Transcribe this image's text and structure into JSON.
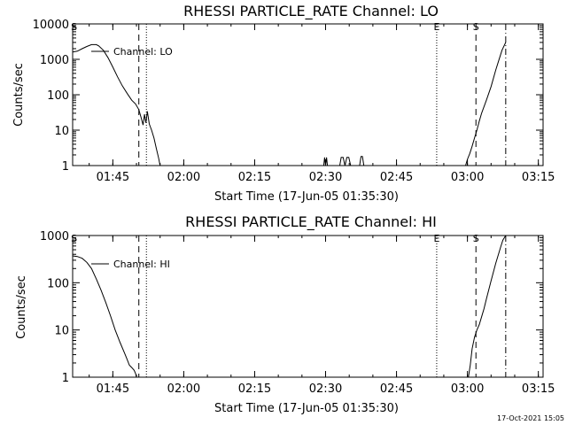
{
  "chart_data": [
    {
      "type": "line",
      "title": "RHESSI PARTICLE_RATE Channel: LO",
      "xlabel": "Start Time (17-Jun-05 01:35:30)",
      "ylabel": "Counts/sec",
      "yscale": "log",
      "xlim_minutes": [
        1.5,
        101.0
      ],
      "ylim": [
        1,
        10000
      ],
      "x_ticks": [
        {
          "minute": 10.0,
          "label": "01:45"
        },
        {
          "minute": 25.0,
          "label": "02:00"
        },
        {
          "minute": 40.0,
          "label": "02:15"
        },
        {
          "minute": 55.0,
          "label": "02:30"
        },
        {
          "minute": 70.0,
          "label": "02:45"
        },
        {
          "minute": 85.0,
          "label": "03:00"
        },
        {
          "minute": 100.0,
          "label": "03:15"
        }
      ],
      "y_ticks": [
        {
          "value": 1,
          "label": "1"
        },
        {
          "value": 10,
          "label": "10"
        },
        {
          "value": 100,
          "label": "100"
        },
        {
          "value": 1000,
          "label": "1000"
        },
        {
          "value": 10000,
          "label": "10000"
        }
      ],
      "legend": "Channel: LO",
      "markers": [
        {
          "minute": 1.8,
          "label": "S",
          "style": "none"
        },
        {
          "minute": 15.5,
          "label": "",
          "style": "dashed"
        },
        {
          "minute": 17.1,
          "label": "",
          "style": "dotted"
        },
        {
          "minute": 78.5,
          "label": "E",
          "style": "dotted"
        },
        {
          "minute": 86.8,
          "label": "S",
          "style": "dashed"
        },
        {
          "minute": 93.1,
          "label": "",
          "style": "dashdot"
        }
      ],
      "series": [
        {
          "name": "Channel: LO",
          "segments": [
            {
              "minutes": [
                1.5,
                2.5,
                3.5,
                4.5,
                5.5,
                6.0,
                6.5,
                7.0,
                8.0,
                9.0,
                10.0,
                11.0,
                12.0,
                13.0,
                14.0,
                14.8,
                15.5,
                16.0,
                16.4,
                16.7,
                17.0,
                17.3,
                17.7,
                18.2,
                18.7,
                19.2,
                19.7,
                20.0
              ],
              "values": [
                1600,
                1700,
                2000,
                2300,
                2600,
                2600,
                2600,
                2400,
                1800,
                1100,
                600,
                320,
                180,
                110,
                70,
                55,
                38,
                22,
                14,
                28,
                16,
                34,
                15,
                10,
                6,
                3,
                1.6,
                1
              ]
            },
            {
              "minutes": [
                54.6,
                54.8,
                55.0,
                55.2,
                55.4
              ],
              "values": [
                1,
                1.7,
                1,
                1.7,
                1
              ]
            },
            {
              "minutes": [
                58.0,
                58.3,
                58.7,
                59.1,
                59.5,
                59.9,
                60.3
              ],
              "values": [
                1,
                1.7,
                1.7,
                1,
                1.7,
                1.7,
                1
              ]
            },
            {
              "minutes": [
                62.2,
                62.5,
                62.8,
                63.1
              ],
              "values": [
                1,
                1.8,
                1.8,
                1
              ]
            },
            {
              "minutes": [
                84.6,
                85.0,
                85.5,
                86.0,
                86.5,
                87.0,
                87.5,
                88.0,
                89.0,
                90.0,
                91.0,
                91.6,
                92.3,
                93.1
              ],
              "values": [
                1,
                1.5,
                2.2,
                3.5,
                6,
                10,
                18,
                30,
                70,
                170,
                500,
                900,
                1800,
                3000
              ]
            }
          ]
        }
      ]
    },
    {
      "type": "line",
      "title": "RHESSI PARTICLE_RATE Channel: HI",
      "xlabel": "Start Time (17-Jun-05 01:35:30)",
      "ylabel": "Counts/sec",
      "yscale": "log",
      "xlim_minutes": [
        1.5,
        101.0
      ],
      "ylim": [
        1,
        1000
      ],
      "x_ticks": [
        {
          "minute": 10.0,
          "label": "01:45"
        },
        {
          "minute": 25.0,
          "label": "02:00"
        },
        {
          "minute": 40.0,
          "label": "02:15"
        },
        {
          "minute": 55.0,
          "label": "02:30"
        },
        {
          "minute": 70.0,
          "label": "02:45"
        },
        {
          "minute": 85.0,
          "label": "03:00"
        },
        {
          "minute": 100.0,
          "label": "03:15"
        }
      ],
      "y_ticks": [
        {
          "value": 1,
          "label": "1"
        },
        {
          "value": 10,
          "label": "10"
        },
        {
          "value": 100,
          "label": "100"
        },
        {
          "value": 1000,
          "label": "1000"
        }
      ],
      "legend": "Channel: HI",
      "markers": [
        {
          "minute": 1.8,
          "label": "S",
          "style": "none"
        },
        {
          "minute": 15.5,
          "label": "",
          "style": "dashed"
        },
        {
          "minute": 17.1,
          "label": "",
          "style": "dotted"
        },
        {
          "minute": 78.5,
          "label": "E",
          "style": "dotted"
        },
        {
          "minute": 86.8,
          "label": "S",
          "style": "dashed"
        },
        {
          "minute": 93.1,
          "label": "",
          "style": "dashdot"
        }
      ],
      "series": [
        {
          "name": "Channel: HI",
          "segments": [
            {
              "minutes": [
                1.5,
                2.5,
                3.5,
                4.5,
                5.5,
                6.5,
                7.5,
                8.5,
                9.5,
                10.5,
                11.5,
                12.5,
                13.0,
                13.5,
                14.0,
                14.5,
                14.8,
                15.0
              ],
              "values": [
                370,
                360,
                330,
                270,
                200,
                120,
                70,
                38,
                20,
                10,
                5.5,
                3.2,
                2.4,
                1.8,
                1.6,
                1.4,
                1.2,
                1
              ]
            },
            {
              "minutes": [
                85.2,
                85.6,
                86.0,
                86.5,
                87.0,
                87.5,
                88.0,
                88.5,
                89.0,
                90.0,
                91.0,
                92.0,
                92.5,
                93.1
              ],
              "values": [
                1,
                1.8,
                4,
                7,
                10,
                13,
                19,
                28,
                45,
                110,
                260,
                560,
                800,
                1000
              ]
            }
          ]
        }
      ]
    }
  ],
  "footer": {
    "timestamp": "17-Oct-2021 15:05"
  }
}
